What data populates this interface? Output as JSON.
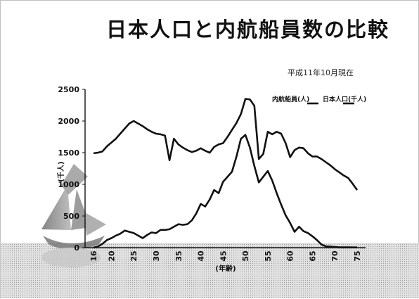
{
  "slide": {
    "title": "日本人口と内航船員数の比較",
    "subtitle": "平成11年10月現在"
  },
  "chart_data": {
    "type": "line",
    "title": "日本人口と内航船員数の比較",
    "subtitle": "平成11年10月現在",
    "xlabel": "(年齢)",
    "ylabel": "(千人)",
    "xlim": [
      16,
      75
    ],
    "ylim": [
      0,
      2500
    ],
    "xticks": [
      16,
      20,
      25,
      30,
      35,
      40,
      45,
      50,
      55,
      60,
      65,
      70,
      75
    ],
    "yticks": [
      0,
      500,
      1000,
      1500,
      2000,
      2500
    ],
    "legend_position": "top-right",
    "grid": false,
    "series": [
      {
        "name": "内航船員(人)",
        "color": "#111111",
        "points": [
          [
            16,
            0
          ],
          [
            17,
            20
          ],
          [
            18,
            60
          ],
          [
            19,
            120
          ],
          [
            20,
            150
          ],
          [
            21,
            190
          ],
          [
            22,
            220
          ],
          [
            23,
            270
          ],
          [
            24,
            250
          ],
          [
            25,
            230
          ],
          [
            26,
            190
          ],
          [
            27,
            150
          ],
          [
            28,
            200
          ],
          [
            29,
            240
          ],
          [
            30,
            230
          ],
          [
            31,
            280
          ],
          [
            32,
            280
          ],
          [
            33,
            290
          ],
          [
            34,
            330
          ],
          [
            35,
            370
          ],
          [
            36,
            360
          ],
          [
            37,
            370
          ],
          [
            38,
            430
          ],
          [
            39,
            540
          ],
          [
            40,
            690
          ],
          [
            41,
            650
          ],
          [
            42,
            760
          ],
          [
            43,
            910
          ],
          [
            44,
            860
          ],
          [
            45,
            1040
          ],
          [
            46,
            1120
          ],
          [
            47,
            1200
          ],
          [
            48,
            1440
          ],
          [
            49,
            1720
          ],
          [
            50,
            1780
          ],
          [
            51,
            1580
          ],
          [
            52,
            1290
          ],
          [
            53,
            1030
          ],
          [
            54,
            1120
          ],
          [
            55,
            1210
          ],
          [
            56,
            1060
          ],
          [
            57,
            860
          ],
          [
            58,
            680
          ],
          [
            59,
            510
          ],
          [
            60,
            390
          ],
          [
            61,
            250
          ],
          [
            62,
            330
          ],
          [
            63,
            260
          ],
          [
            64,
            230
          ],
          [
            65,
            180
          ],
          [
            66,
            120
          ],
          [
            67,
            50
          ],
          [
            68,
            20
          ],
          [
            69,
            15
          ],
          [
            70,
            10
          ],
          [
            71,
            5
          ],
          [
            72,
            5
          ],
          [
            73,
            5
          ],
          [
            74,
            3
          ],
          [
            75,
            3
          ]
        ]
      },
      {
        "name": "日本人口(千人)",
        "color": "#111111",
        "points": [
          [
            16,
            1490
          ],
          [
            17,
            1500
          ],
          [
            18,
            1520
          ],
          [
            19,
            1600
          ],
          [
            20,
            1660
          ],
          [
            21,
            1720
          ],
          [
            22,
            1800
          ],
          [
            23,
            1880
          ],
          [
            24,
            1960
          ],
          [
            25,
            2000
          ],
          [
            26,
            1960
          ],
          [
            27,
            1920
          ],
          [
            28,
            1870
          ],
          [
            29,
            1830
          ],
          [
            30,
            1800
          ],
          [
            31,
            1790
          ],
          [
            32,
            1770
          ],
          [
            33,
            1380
          ],
          [
            34,
            1720
          ],
          [
            35,
            1630
          ],
          [
            36,
            1580
          ],
          [
            37,
            1540
          ],
          [
            38,
            1510
          ],
          [
            39,
            1530
          ],
          [
            40,
            1570
          ],
          [
            41,
            1530
          ],
          [
            42,
            1500
          ],
          [
            43,
            1590
          ],
          [
            44,
            1630
          ],
          [
            45,
            1650
          ],
          [
            46,
            1750
          ],
          [
            47,
            1860
          ],
          [
            48,
            1970
          ],
          [
            49,
            2110
          ],
          [
            50,
            2350
          ],
          [
            51,
            2340
          ],
          [
            52,
            2240
          ],
          [
            53,
            1400
          ],
          [
            54,
            1480
          ],
          [
            55,
            1830
          ],
          [
            56,
            1790
          ],
          [
            57,
            1830
          ],
          [
            58,
            1800
          ],
          [
            59,
            1650
          ],
          [
            60,
            1430
          ],
          [
            61,
            1540
          ],
          [
            62,
            1580
          ],
          [
            63,
            1570
          ],
          [
            64,
            1490
          ],
          [
            65,
            1440
          ],
          [
            66,
            1440
          ],
          [
            67,
            1400
          ],
          [
            68,
            1350
          ],
          [
            69,
            1300
          ],
          [
            70,
            1240
          ],
          [
            71,
            1190
          ],
          [
            72,
            1140
          ],
          [
            73,
            1100
          ],
          [
            74,
            1010
          ],
          [
            75,
            910
          ]
        ]
      }
    ]
  }
}
